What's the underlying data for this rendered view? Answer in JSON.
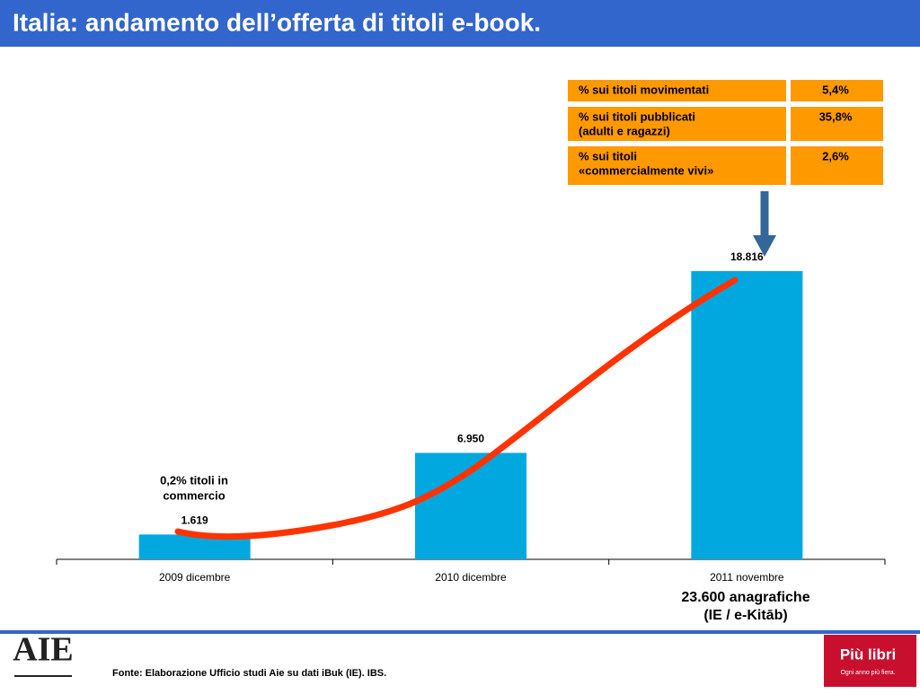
{
  "chart_data": {
    "type": "bar",
    "title": "Italia: andamento dell’offerta di titoli e-book.",
    "categories": [
      "2009 dicembre",
      "2010 dicembre",
      "2011 novembre"
    ],
    "values": [
      1619,
      6950,
      18816
    ],
    "value_labels": [
      "1.619",
      "6.950",
      "18.816"
    ],
    "color": "#00a8e0",
    "annotations": [
      [
        "0,2% titoli in",
        "commercio"
      ],
      [
        "23.600 anagrafiche",
        "(IE / e-Kitāb)"
      ]
    ]
  },
  "table": {
    "rows": [
      [
        [
          "% sui titoli movimentati"
        ],
        "5,4%"
      ],
      [
        [
          "% sui titoli pubblicati",
          "(adulti e ragazzi)"
        ],
        "35,8%"
      ],
      [
        [
          "% sui titoli",
          "«commercialmente vivi»"
        ],
        "2,6%"
      ]
    ]
  },
  "source": "Fonte: Elaborazione Ufficio studi Aie su dati iBuk (IE). IBS.",
  "logos": {
    "left": "AIE",
    "right": "Più libri",
    "right_tagline": "Ogni anno più fiera."
  }
}
